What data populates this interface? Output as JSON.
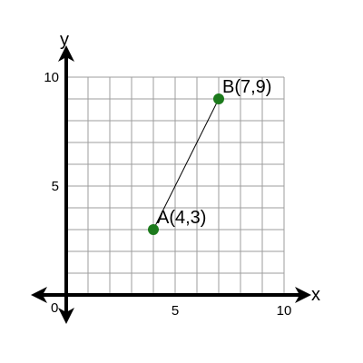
{
  "chart_data": {
    "type": "scatter",
    "xlabel": "x",
    "ylabel": "y",
    "origin_label": "0",
    "xlim": [
      0,
      10
    ],
    "ylim": [
      0,
      10
    ],
    "grid": true,
    "grid_step": 1,
    "x_tick_labels": [
      {
        "value": 5,
        "text": "5"
      },
      {
        "value": 10,
        "text": "10"
      }
    ],
    "y_tick_labels": [
      {
        "value": 5,
        "text": "5"
      },
      {
        "value": 10,
        "text": "10"
      }
    ],
    "points": [
      {
        "id": "A",
        "x": 4,
        "y": 3,
        "label": "A(4,3)"
      },
      {
        "id": "B",
        "x": 7,
        "y": 9,
        "label": "B(7,9)"
      }
    ],
    "segments": [
      {
        "from": "A",
        "to": "B"
      }
    ]
  },
  "colors": {
    "grid": "#9e9e9e",
    "axes": "#000000",
    "point": "#1c7a1c",
    "segment": "#000000"
  }
}
